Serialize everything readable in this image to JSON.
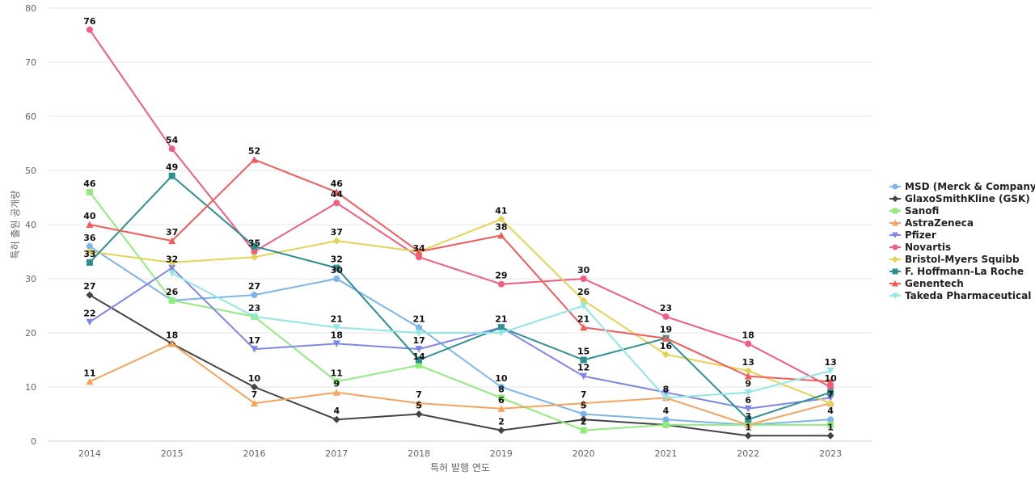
{
  "chart_data": {
    "type": "line",
    "title": "",
    "xlabel": "특허 발행 연도",
    "ylabel": "특허 출원 공개량",
    "ylim": [
      0,
      80
    ],
    "yticks": [
      0,
      10,
      20,
      30,
      40,
      50,
      60,
      70,
      80
    ],
    "grid": true,
    "legend_position": "right",
    "categories": [
      "2014",
      "2015",
      "2016",
      "2017",
      "2018",
      "2019",
      "2020",
      "2021",
      "2022",
      "2023"
    ],
    "series": [
      {
        "name": "MSD (Merck & Company)",
        "color": "#7cb5ec",
        "marker": "circle",
        "values": [
          36,
          26,
          27,
          30,
          21,
          10,
          5,
          4,
          3,
          4
        ]
      },
      {
        "name": "GlaxoSmithKline (GSK)",
        "color": "#434348",
        "marker": "diamond",
        "values": [
          27,
          18,
          10,
          4,
          5,
          2,
          4,
          3,
          1,
          1
        ]
      },
      {
        "name": "Sanofi",
        "color": "#90ed7d",
        "marker": "square",
        "values": [
          46,
          26,
          23,
          11,
          14,
          8,
          2,
          3,
          3,
          3
        ]
      },
      {
        "name": "AstraZeneca",
        "color": "#f7a35c",
        "marker": "triangle",
        "values": [
          11,
          18,
          7,
          9,
          7,
          6,
          7,
          8,
          3,
          7
        ]
      },
      {
        "name": "Pfizer",
        "color": "#8085e9",
        "marker": "triangle-down",
        "values": [
          22,
          32,
          17,
          18,
          17,
          21,
          12,
          9,
          6,
          8
        ]
      },
      {
        "name": "Novartis",
        "color": "#f15c80",
        "marker": "circle",
        "values": [
          76,
          54,
          35,
          44,
          34,
          29,
          30,
          23,
          18,
          10
        ]
      },
      {
        "name": "Bristol-Myers Squibb",
        "color": "#e4d354",
        "marker": "diamond",
        "values": [
          35,
          33,
          34,
          37,
          35,
          41,
          26,
          16,
          13,
          7
        ]
      },
      {
        "name": "F. Hoffmann-La Roche",
        "color": "#2b908f",
        "marker": "square",
        "values": [
          33,
          49,
          36,
          32,
          15,
          21,
          15,
          19,
          4,
          9
        ]
      },
      {
        "name": "Genentech",
        "color": "#f45b5b",
        "marker": "triangle",
        "values": [
          40,
          37,
          52,
          46,
          35,
          38,
          21,
          19,
          12,
          11
        ]
      },
      {
        "name": "Takeda Pharmaceutical",
        "color": "#91e8e1",
        "marker": "triangle-down",
        "values": [
          null,
          31,
          23,
          21,
          20,
          20,
          25,
          8,
          9,
          13
        ]
      }
    ],
    "data_labels": [
      {
        "x": "2014",
        "labels": [
          "76",
          "46",
          "40",
          "36",
          "33",
          "27",
          "22",
          "11"
        ]
      },
      {
        "x": "2015",
        "labels": [
          "54",
          "49",
          "37",
          "32",
          "26",
          "18"
        ]
      },
      {
        "x": "2016",
        "labels": [
          "52",
          "35",
          "27",
          "23",
          "17",
          "10",
          "7"
        ]
      },
      {
        "x": "2017",
        "labels": [
          "46",
          "44",
          "37",
          "32",
          "30",
          "21",
          "18",
          "11",
          "9",
          "4"
        ]
      },
      {
        "x": "2018",
        "labels": [
          "34",
          "21",
          "17",
          "14",
          "7",
          "5"
        ]
      },
      {
        "x": "2019",
        "labels": [
          "41",
          "38",
          "29",
          "21",
          "10",
          "8",
          "6",
          "2"
        ]
      },
      {
        "x": "2020",
        "labels": [
          "30",
          "26",
          "21",
          "15",
          "12",
          "7",
          "5",
          "2"
        ]
      },
      {
        "x": "2021",
        "labels": [
          "23",
          "19",
          "16",
          "8",
          "4"
        ]
      },
      {
        "x": "2022",
        "labels": [
          "18",
          "13",
          "9",
          "6",
          "3",
          "1"
        ]
      },
      {
        "x": "2023",
        "labels": [
          "13",
          "10",
          "7",
          "4",
          "1"
        ]
      }
    ]
  }
}
